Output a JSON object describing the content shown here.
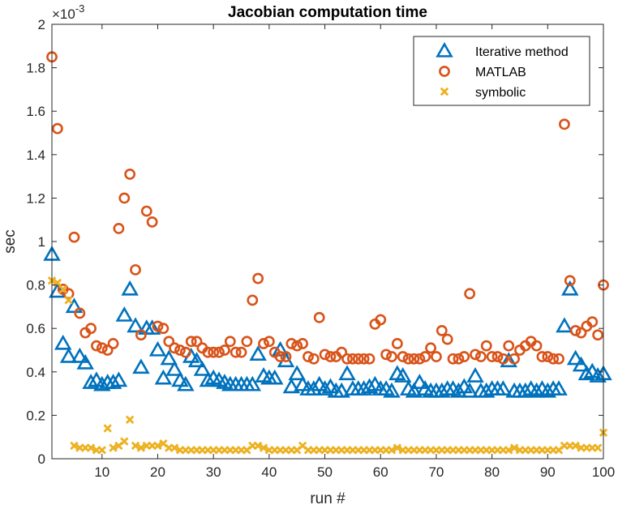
{
  "chart_data": {
    "type": "scatter",
    "title": "Jacobian computation time",
    "xlabel": "run #",
    "ylabel": "sec",
    "y_exponent_label": "×10",
    "y_exponent_power": "-3",
    "xlim": [
      1,
      100
    ],
    "ylim": [
      0,
      0.002
    ],
    "xticks": [
      10,
      20,
      30,
      40,
      50,
      60,
      70,
      80,
      90,
      100
    ],
    "xtick_labels": [
      "10",
      "20",
      "30",
      "40",
      "50",
      "60",
      "70",
      "80",
      "90",
      "100"
    ],
    "yticks": [
      0,
      0.0002,
      0.0004,
      0.0006,
      0.0008,
      0.001,
      0.0012,
      0.0014,
      0.0016,
      0.0018,
      0.002
    ],
    "ytick_labels": [
      "0",
      "0.2",
      "0.4",
      "0.6",
      "0.8",
      "1",
      "1.2",
      "1.4",
      "1.6",
      "1.8",
      "2"
    ],
    "grid": false,
    "legend_position": "top-right",
    "series": [
      {
        "name": "Iterative method",
        "marker": "triangle",
        "color": "#0072BD",
        "x": [
          1,
          2,
          3,
          4,
          5,
          6,
          7,
          8,
          9,
          10,
          11,
          12,
          13,
          14,
          15,
          16,
          17,
          18,
          19,
          20,
          21,
          22,
          23,
          24,
          25,
          26,
          27,
          28,
          29,
          30,
          31,
          32,
          33,
          34,
          35,
          36,
          37,
          38,
          39,
          40,
          41,
          42,
          43,
          44,
          45,
          46,
          47,
          48,
          49,
          50,
          51,
          52,
          53,
          54,
          55,
          56,
          57,
          58,
          59,
          60,
          61,
          62,
          63,
          64,
          65,
          66,
          67,
          68,
          69,
          70,
          71,
          72,
          73,
          74,
          75,
          76,
          77,
          78,
          79,
          80,
          81,
          82,
          83,
          84,
          85,
          86,
          87,
          88,
          89,
          90,
          91,
          92,
          93,
          94,
          95,
          96,
          97,
          98,
          99,
          100
        ],
        "values": [
          0.00094,
          0.00077,
          0.00053,
          0.00047,
          0.0007,
          0.00047,
          0.00044,
          0.00035,
          0.00036,
          0.00034,
          0.00035,
          0.00035,
          0.00036,
          0.00066,
          0.00078,
          0.00061,
          0.00042,
          0.0006,
          0.0006,
          0.0005,
          0.00037,
          0.00046,
          0.00041,
          0.00036,
          0.00034,
          0.00047,
          0.00045,
          0.00041,
          0.00036,
          0.00037,
          0.00036,
          0.00035,
          0.00034,
          0.00034,
          0.00034,
          0.00034,
          0.00034,
          0.00048,
          0.00038,
          0.00037,
          0.00037,
          0.0005,
          0.00045,
          0.00033,
          0.00039,
          0.00034,
          0.00032,
          0.00032,
          0.00034,
          0.00032,
          0.00033,
          0.00031,
          0.00031,
          0.00039,
          0.00032,
          0.00032,
          0.00032,
          0.00033,
          0.00034,
          0.00032,
          0.00032,
          0.00031,
          0.00039,
          0.00038,
          0.00032,
          0.00031,
          0.00035,
          0.00032,
          0.00031,
          0.00031,
          0.00031,
          0.00032,
          0.00032,
          0.00031,
          0.00033,
          0.00031,
          0.00038,
          0.00031,
          0.00031,
          0.00032,
          0.00032,
          0.00032,
          0.00045,
          0.00031,
          0.00031,
          0.00031,
          0.00032,
          0.00031,
          0.00032,
          0.00031,
          0.00032,
          0.00032,
          0.00061,
          0.00078,
          0.00046,
          0.00043,
          0.00039,
          0.0004,
          0.00038,
          0.00039
        ]
      },
      {
        "name": "MATLAB",
        "marker": "circle",
        "color": "#D95319",
        "x": [
          1,
          2,
          3,
          4,
          5,
          6,
          7,
          8,
          9,
          10,
          11,
          12,
          13,
          14,
          15,
          16,
          17,
          18,
          19,
          20,
          21,
          22,
          23,
          24,
          25,
          26,
          27,
          28,
          29,
          30,
          31,
          32,
          33,
          34,
          35,
          36,
          37,
          38,
          39,
          40,
          41,
          42,
          43,
          44,
          45,
          46,
          47,
          48,
          49,
          50,
          51,
          52,
          53,
          54,
          55,
          56,
          57,
          58,
          59,
          60,
          61,
          62,
          63,
          64,
          65,
          66,
          67,
          68,
          69,
          70,
          71,
          72,
          73,
          74,
          75,
          76,
          77,
          78,
          79,
          80,
          81,
          82,
          83,
          84,
          85,
          86,
          87,
          88,
          89,
          90,
          91,
          92,
          93,
          94,
          95,
          96,
          97,
          98,
          99,
          100
        ],
        "values": [
          0.00185,
          0.00152,
          0.00078,
          0.00076,
          0.00102,
          0.00067,
          0.00058,
          0.0006,
          0.00052,
          0.00051,
          0.0005,
          0.00053,
          0.00106,
          0.0012,
          0.00131,
          0.00087,
          0.00057,
          0.00114,
          0.00109,
          0.00061,
          0.0006,
          0.00054,
          0.00051,
          0.0005,
          0.00049,
          0.00054,
          0.00054,
          0.00051,
          0.00049,
          0.00049,
          0.00049,
          0.0005,
          0.00054,
          0.00049,
          0.00049,
          0.00054,
          0.00073,
          0.00083,
          0.00053,
          0.00054,
          0.00049,
          0.00047,
          0.00047,
          0.00053,
          0.00052,
          0.00053,
          0.00047,
          0.00046,
          0.00065,
          0.00048,
          0.00047,
          0.00047,
          0.00049,
          0.00046,
          0.00046,
          0.00046,
          0.00046,
          0.00046,
          0.00062,
          0.00064,
          0.00048,
          0.00047,
          0.00053,
          0.00047,
          0.00046,
          0.00046,
          0.00046,
          0.00047,
          0.00051,
          0.00047,
          0.00059,
          0.00055,
          0.00046,
          0.00046,
          0.00047,
          0.00076,
          0.00048,
          0.00047,
          0.00052,
          0.00047,
          0.00047,
          0.00046,
          0.00052,
          0.00046,
          0.0005,
          0.00052,
          0.00054,
          0.00052,
          0.00047,
          0.00047,
          0.00046,
          0.00046,
          0.00154,
          0.00082,
          0.00059,
          0.00058,
          0.00061,
          0.00063,
          0.00057,
          0.0008
        ]
      },
      {
        "name": "symbolic",
        "marker": "x",
        "color": "#EDB120",
        "x": [
          1,
          2,
          3,
          4,
          5,
          6,
          7,
          8,
          9,
          10,
          11,
          12,
          13,
          14,
          15,
          16,
          17,
          18,
          19,
          20,
          21,
          22,
          23,
          24,
          25,
          26,
          27,
          28,
          29,
          30,
          31,
          32,
          33,
          34,
          35,
          36,
          37,
          38,
          39,
          40,
          41,
          42,
          43,
          44,
          45,
          46,
          47,
          48,
          49,
          50,
          51,
          52,
          53,
          54,
          55,
          56,
          57,
          58,
          59,
          60,
          61,
          62,
          63,
          64,
          65,
          66,
          67,
          68,
          69,
          70,
          71,
          72,
          73,
          74,
          75,
          76,
          77,
          78,
          79,
          80,
          81,
          82,
          83,
          84,
          85,
          86,
          87,
          88,
          89,
          90,
          91,
          92,
          93,
          94,
          95,
          96,
          97,
          98,
          99,
          100
        ],
        "values": [
          0.00082,
          0.00081,
          0.00078,
          0.00073,
          6e-05,
          5e-05,
          5e-05,
          5e-05,
          4e-05,
          4e-05,
          0.00014,
          5e-05,
          6e-05,
          8e-05,
          0.00018,
          6e-05,
          5e-05,
          6e-05,
          6e-05,
          6e-05,
          7e-05,
          5e-05,
          5e-05,
          4e-05,
          4e-05,
          4e-05,
          4e-05,
          4e-05,
          4e-05,
          4e-05,
          4e-05,
          4e-05,
          4e-05,
          4e-05,
          4e-05,
          4e-05,
          6e-05,
          6e-05,
          5e-05,
          4e-05,
          4e-05,
          4e-05,
          4e-05,
          4e-05,
          4e-05,
          6e-05,
          4e-05,
          4e-05,
          4e-05,
          4e-05,
          4e-05,
          4e-05,
          4e-05,
          4e-05,
          4e-05,
          4e-05,
          4e-05,
          4e-05,
          4e-05,
          4e-05,
          4e-05,
          4e-05,
          5e-05,
          4e-05,
          4e-05,
          4e-05,
          4e-05,
          4e-05,
          4e-05,
          4e-05,
          4e-05,
          4e-05,
          4e-05,
          4e-05,
          4e-05,
          4e-05,
          4e-05,
          4e-05,
          4e-05,
          4e-05,
          4e-05,
          4e-05,
          4e-05,
          5e-05,
          4e-05,
          4e-05,
          4e-05,
          4e-05,
          4e-05,
          4e-05,
          4e-05,
          4e-05,
          6e-05,
          6e-05,
          6e-05,
          5e-05,
          5e-05,
          5e-05,
          5e-05,
          0.00012
        ]
      }
    ]
  }
}
